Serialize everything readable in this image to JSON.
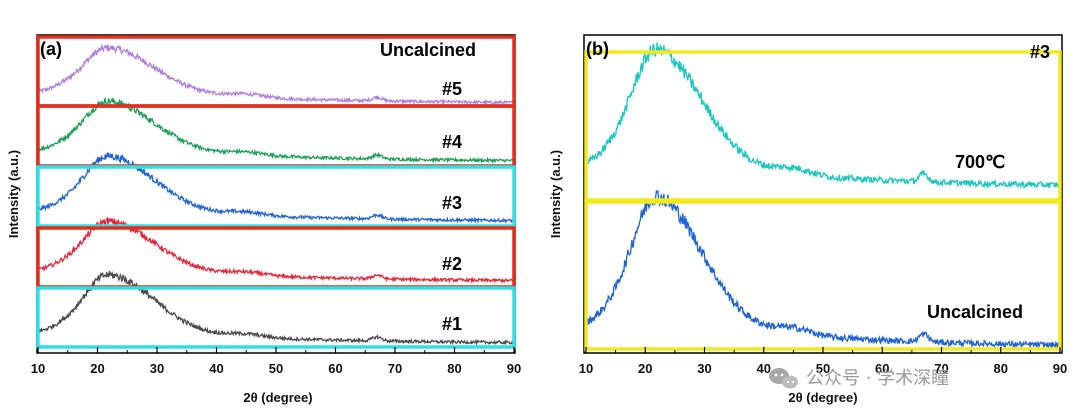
{
  "chart_data": [
    {
      "panel": "(a)",
      "type": "line",
      "xlabel": "2θ (degree)",
      "ylabel": "Intensity (a.u.)",
      "xlim": [
        10,
        90
      ],
      "xticks": [
        10,
        20,
        30,
        40,
        50,
        60,
        70,
        80,
        90
      ],
      "annotations": [
        "Uncalcined"
      ],
      "series": [
        {
          "name": "#5",
          "color": "#b07ee0",
          "box": "#e0301e",
          "peak_x": 22,
          "peak_height": 0.65,
          "offset": 4
        },
        {
          "name": "#4",
          "color": "#1e9e5a",
          "box": "#e0301e",
          "peak_x": 22,
          "peak_height": 0.72,
          "offset": 3
        },
        {
          "name": "#3",
          "color": "#1f63d6",
          "box": "#2fe0e8",
          "peak_x": 22,
          "peak_height": 0.8,
          "offset": 2
        },
        {
          "name": "#2",
          "color": "#e8263a",
          "box": "#e0301e",
          "peak_x": 22,
          "peak_height": 0.72,
          "offset": 1
        },
        {
          "name": "#1",
          "color": "#4a4a4a",
          "box": "#2fe0e8",
          "peak_x": 22,
          "peak_height": 0.85,
          "offset": 0
        }
      ]
    },
    {
      "panel": "(b)",
      "type": "line",
      "xlabel": "2θ (degree)",
      "ylabel": "Intensity (a.u.)",
      "xlim": [
        10,
        90
      ],
      "xticks": [
        10,
        20,
        30,
        40,
        50,
        60,
        70,
        80,
        90
      ],
      "annotations": [
        "#3"
      ],
      "series": [
        {
          "name": "700℃",
          "color": "#1fc6c0",
          "peak_x": 22,
          "peak_height": 0.85,
          "offset": 1
        },
        {
          "name": "Uncalcined",
          "color": "#1f63d6",
          "peak_x": 22,
          "peak_height": 0.95,
          "offset": 0
        }
      ]
    }
  ],
  "watermark": "公众号 · 学术深瞳"
}
